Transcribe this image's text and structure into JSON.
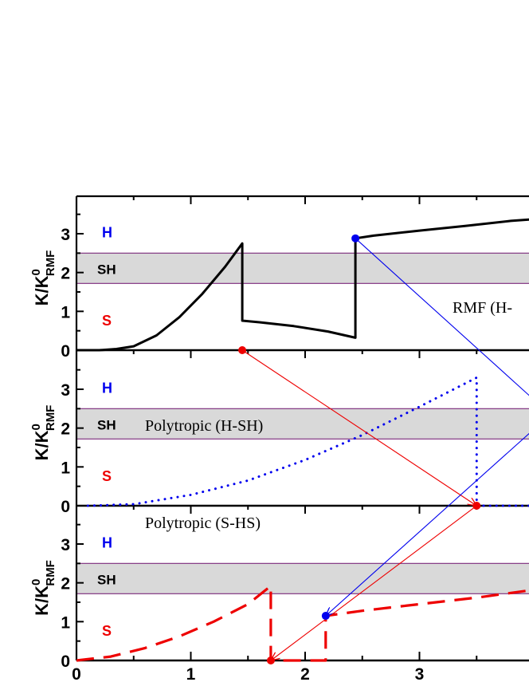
{
  "colors": {
    "band_fill": "#d9d9d9",
    "band_edge": "#7b2a7b",
    "blue": "#0000ee",
    "red": "#ee0000",
    "black": "#000000"
  },
  "chart_data": {
    "type": "line",
    "xlim": [
      0,
      4.2
    ],
    "x_ticks": [
      "0",
      "1",
      "2",
      "3"
    ],
    "shared_x_axis": true,
    "panels": [
      {
        "id": "top",
        "ylabel_main": "K/K",
        "ylabel_sup": "0",
        "ylabel_sub": "RMF",
        "ylim": [
          0,
          3.8
        ],
        "y_ticks": [
          "0",
          "1",
          "2",
          "3"
        ],
        "band": [
          1.72,
          2.5
        ],
        "region_labels": {
          "H": "H",
          "SH": "SH",
          "S": "S"
        },
        "annotation": "RMF (H-",
        "series": [
          {
            "style": "solid",
            "color": "black",
            "x": [
              0,
              0.2,
              0.35,
              0.5,
              0.7,
              0.9,
              1.1,
              1.3,
              1.45,
              1.45,
              1.6,
              1.9,
              2.2,
              2.44,
              2.44,
              2.6,
              3.0,
              3.4,
              3.8,
              4.2
            ],
            "y": [
              0,
              0.0,
              0.03,
              0.1,
              0.38,
              0.85,
              1.45,
              2.15,
              2.75,
              0.76,
              0.72,
              0.62,
              0.48,
              0.32,
              2.88,
              2.95,
              3.08,
              3.2,
              3.33,
              3.42
            ]
          }
        ],
        "markers": [
          {
            "x": 1.45,
            "y": 0,
            "color": "red"
          },
          {
            "x": 2.44,
            "y": 2.88,
            "color": "blue"
          }
        ]
      },
      {
        "id": "middle",
        "ylabel_main": "K/K",
        "ylabel_sup": "0",
        "ylabel_sub": "RMF",
        "ylim": [
          0,
          3.8
        ],
        "y_ticks": [
          "0",
          "1",
          "2",
          "3"
        ],
        "band": [
          1.72,
          2.5
        ],
        "region_labels": {
          "H": "H",
          "SH": "SH",
          "S": "S"
        },
        "annotation": "Polytropic (H-SH)",
        "series": [
          {
            "style": "dotted",
            "color": "blue",
            "x": [
              0.1,
              0.5,
              1.0,
              1.5,
              2.0,
              2.5,
              3.0,
              3.5,
              3.5,
              3.8,
              4.2
            ],
            "y": [
              0.0,
              0.04,
              0.28,
              0.65,
              1.18,
              1.82,
              2.55,
              3.3,
              0.0,
              0.0,
              0.0
            ]
          }
        ],
        "markers": [
          {
            "x": 3.5,
            "y": 0,
            "color": "red"
          }
        ]
      },
      {
        "id": "bottom",
        "ylabel_main": "K/K",
        "ylabel_sup": "0",
        "ylabel_sub": "RMF",
        "ylim": [
          0,
          3.8
        ],
        "y_ticks": [
          "0",
          "1",
          "2",
          "3"
        ],
        "band": [
          1.72,
          2.5
        ],
        "region_labels": {
          "H": "H",
          "SH": "SH",
          "S": "S"
        },
        "annotation": "Polytropic (S-HS)",
        "series": [
          {
            "style": "dashed",
            "color": "red",
            "x": [
              0,
              0.3,
              0.6,
              0.9,
              1.2,
              1.5,
              1.7,
              1.7,
              1.8,
              2.0,
              2.18,
              2.18,
              2.5,
              3.0,
              3.5,
              4.0,
              4.2
            ],
            "y": [
              0,
              0.1,
              0.32,
              0.62,
              1.0,
              1.45,
              1.92,
              0.0,
              0.0,
              0.0,
              0.0,
              1.15,
              1.28,
              1.45,
              1.62,
              1.82,
              1.9
            ]
          }
        ],
        "markers": [
          {
            "x": 1.7,
            "y": 0,
            "color": "red"
          },
          {
            "x": 2.18,
            "y": 1.15,
            "color": "blue"
          }
        ]
      }
    ],
    "transition_arrows": [
      {
        "color": "red",
        "from": {
          "panel": "top",
          "x": 1.45,
          "y": 0
        },
        "to": {
          "panel": "middle",
          "x": 3.5,
          "y": 0
        }
      },
      {
        "color": "blue",
        "from": {
          "panel": "top",
          "x": 2.44,
          "y": 2.88
        },
        "to": {
          "panel": "middle",
          "x": 4.05,
          "y": 2.6
        }
      },
      {
        "color": "blue",
        "from": {
          "panel": "middle",
          "x": 4.05,
          "y": 2.1
        },
        "to": {
          "panel": "bottom",
          "x": 2.18,
          "y": 1.15
        }
      },
      {
        "color": "red",
        "from": {
          "panel": "middle",
          "x": 3.5,
          "y": 0
        },
        "to": {
          "panel": "bottom",
          "x": 1.7,
          "y": 0
        }
      }
    ]
  }
}
